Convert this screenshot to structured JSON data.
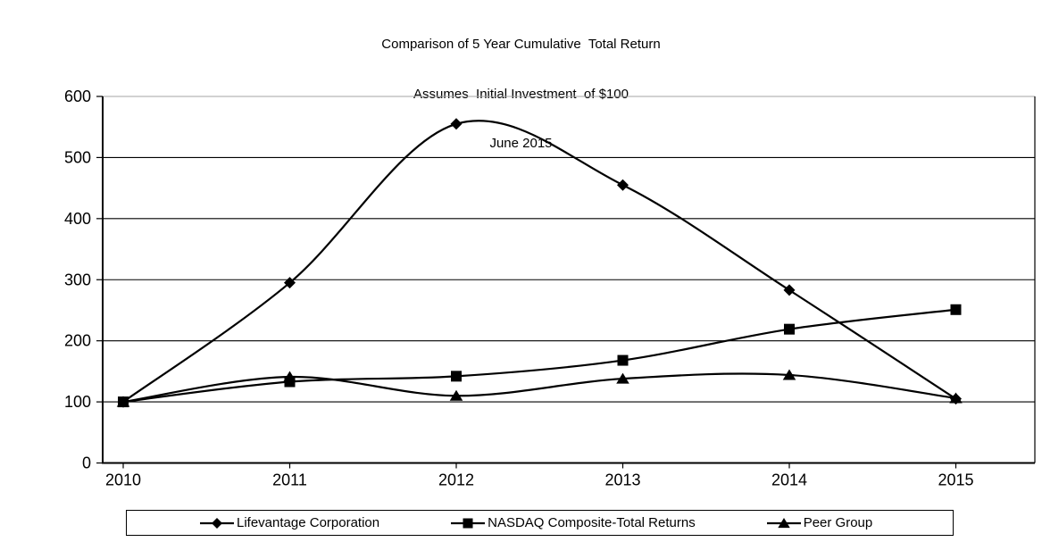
{
  "title": {
    "line1": "Comparison of 5 Year Cumulative  Total Return",
    "line2": "Assumes  Initial Investment  of $100",
    "line3": "June 2015"
  },
  "chart_data": {
    "type": "line",
    "title": "Comparison of 5 Year Cumulative Total Return",
    "subtitle": "Assumes Initial Investment of $100",
    "date_label": "June 2015",
    "x": [
      "2010",
      "2011",
      "2012",
      "2013",
      "2014",
      "2015"
    ],
    "series": [
      {
        "name": "Lifevantage Corporation",
        "marker": "diamond",
        "color": "#000000",
        "values": [
          100,
          295,
          555,
          455,
          283,
          105
        ]
      },
      {
        "name": "NASDAQ Composite-Total Returns",
        "marker": "square",
        "color": "#000000",
        "values": [
          100,
          133,
          142,
          168,
          219,
          251
        ]
      },
      {
        "name": "Peer Group",
        "marker": "triangle",
        "color": "#000000",
        "values": [
          100,
          141,
          110,
          138,
          144,
          106
        ]
      }
    ],
    "ylim": [
      0,
      600
    ],
    "yticks": [
      0,
      100,
      200,
      300,
      400,
      500,
      600
    ],
    "xlabel": "",
    "ylabel": "",
    "grid": true,
    "smooth": true,
    "legend_position": "bottom-box"
  },
  "colors": {
    "series_line": "#000000",
    "gridline": "#000000",
    "plot_top_border": "#a6a6a6",
    "background": "#ffffff"
  }
}
